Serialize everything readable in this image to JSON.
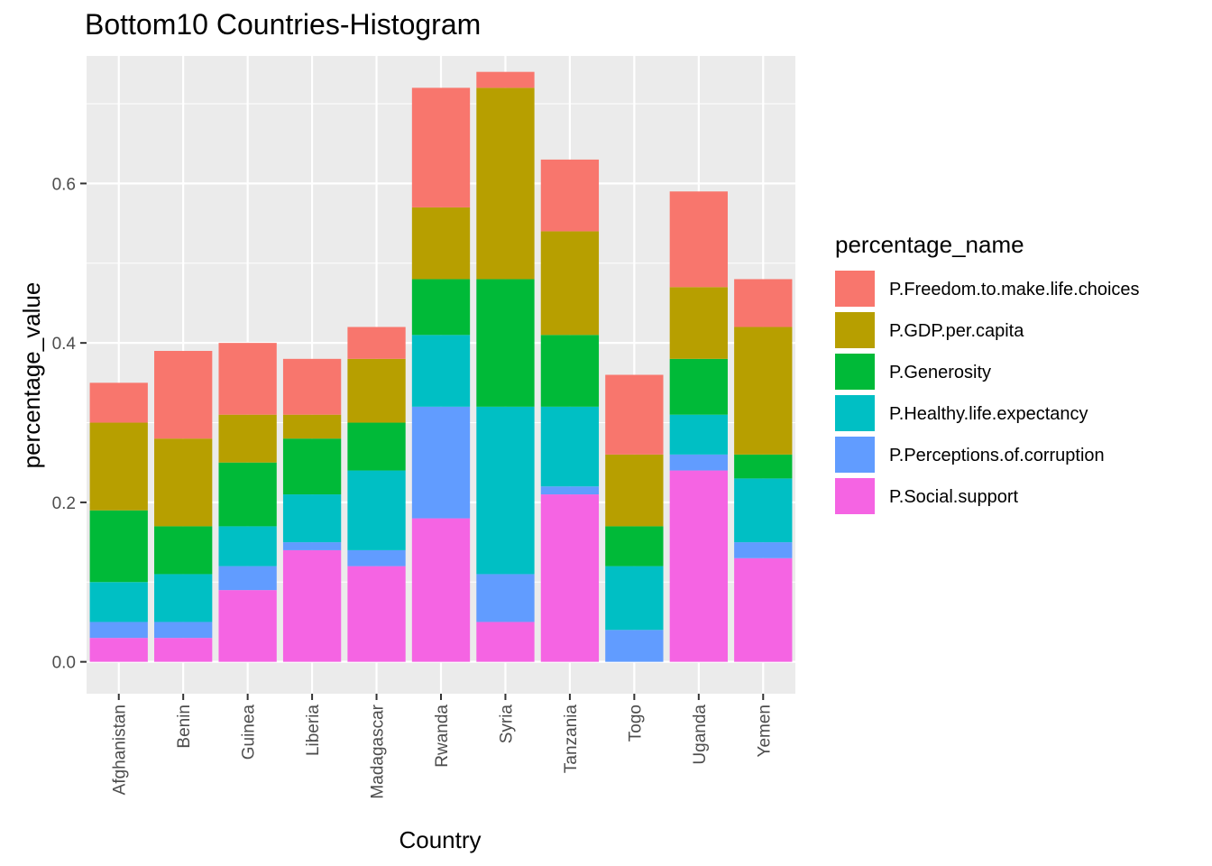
{
  "chart_data": {
    "type": "bar",
    "stacked": true,
    "title": "Bottom10 Countries-Histogram",
    "xlabel": "Country",
    "ylabel": "percentage_value",
    "ylim": [
      -0.04,
      0.76
    ],
    "yticks": [
      0.0,
      0.2,
      0.4,
      0.6
    ],
    "ytick_labels": [
      "0.0",
      "0.2",
      "0.4",
      "0.6"
    ],
    "grid": true,
    "legend_title": "percentage_name",
    "legend_position": "right",
    "categories": [
      "Afghanistan",
      "Benin",
      "Guinea",
      "Liberia",
      "Madagascar",
      "Rwanda",
      "Syria",
      "Tanzania",
      "Togo",
      "Uganda",
      "Yemen"
    ],
    "series": [
      {
        "name": "P.Freedom.to.make.life.choices",
        "color": "#F8766D",
        "values": [
          0.05,
          0.11,
          0.09,
          0.07,
          0.04,
          0.15,
          0.02,
          0.09,
          0.1,
          0.12,
          0.06
        ]
      },
      {
        "name": "P.GDP.per.capita",
        "color": "#B79F00",
        "values": [
          0.11,
          0.11,
          0.06,
          0.03,
          0.08,
          0.09,
          0.24,
          0.13,
          0.09,
          0.09,
          0.16
        ]
      },
      {
        "name": "P.Generosity",
        "color": "#00BA38",
        "values": [
          0.09,
          0.06,
          0.08,
          0.07,
          0.06,
          0.07,
          0.16,
          0.09,
          0.05,
          0.07,
          0.03
        ]
      },
      {
        "name": "P.Healthy.life.expectancy",
        "color": "#00BFC4",
        "values": [
          0.05,
          0.06,
          0.05,
          0.06,
          0.1,
          0.09,
          0.21,
          0.1,
          0.08,
          0.05,
          0.08
        ]
      },
      {
        "name": "P.Perceptions.of.corruption",
        "color": "#619CFF",
        "values": [
          0.02,
          0.02,
          0.03,
          0.01,
          0.02,
          0.14,
          0.06,
          0.01,
          0.04,
          0.02,
          0.02
        ]
      },
      {
        "name": "P.Social.support",
        "color": "#F564E3",
        "values": [
          0.03,
          0.03,
          0.09,
          0.14,
          0.12,
          0.18,
          0.05,
          0.21,
          0.0,
          0.24,
          0.13
        ]
      }
    ],
    "colors": {
      "panel_background": "#EBEBEB",
      "grid_major": "#FFFFFF",
      "tick_text": "#4D4D4D",
      "tick_mark": "#333333"
    }
  }
}
